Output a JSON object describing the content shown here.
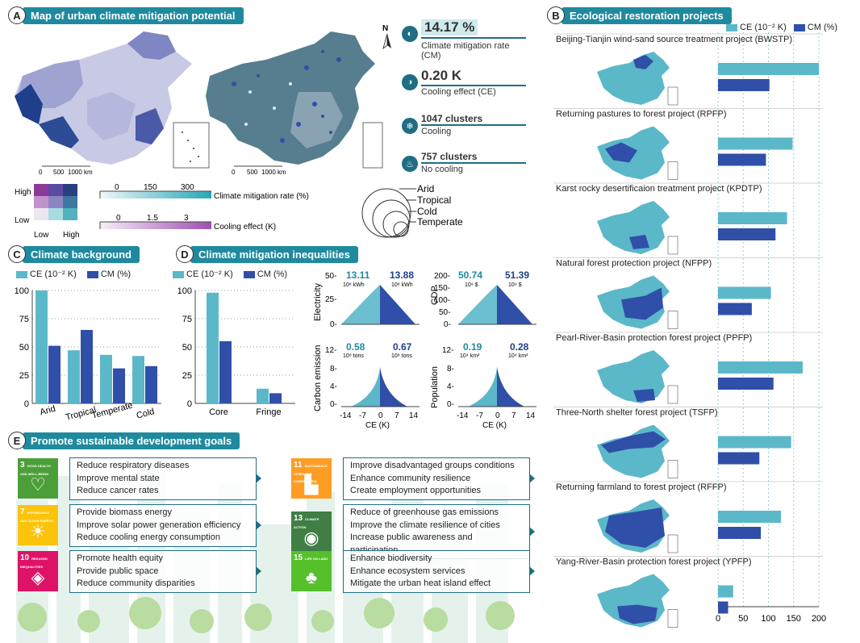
{
  "colors": {
    "ce": "#5bb8c9",
    "cm": "#2f4fa8",
    "accent": "#1f8a9e",
    "dark": "#1f6e83"
  },
  "panelA": {
    "letter": "A",
    "title": "Map of urban climate mitigation potential",
    "scale1": {
      "zero": "0",
      "mid": "500",
      "end": "1000 km"
    },
    "scale2": {
      "zero": "0",
      "mid": "500",
      "end": "1000 km"
    },
    "north": "N",
    "bivar": {
      "high": "High",
      "low": "Low",
      "xlow": "Low",
      "xhigh": "High"
    },
    "cm_legend": {
      "t0": "0",
      "t1": "150",
      "t2": "300",
      "label": "Climate mitigation rate (%)"
    },
    "ce_legend": {
      "t0": "0",
      "t1": "1.5",
      "t2": "3",
      "label": "Cooling effect (K)"
    },
    "zones": [
      "Arid",
      "Tropical",
      "Cold",
      "Temperate"
    ],
    "stats": [
      {
        "icon": "map-icon",
        "value": "14.17 %",
        "label": "Climate mitigation rate (CM)"
      },
      {
        "icon": "thermometer-icon",
        "value": "0.20 K",
        "label": "Cooling effect (CE)"
      },
      {
        "icon": "snowflake-icon",
        "value": "1047 clusters",
        "label": "Cooling"
      },
      {
        "icon": "flame-icon",
        "value": "757 clusters",
        "label": "No cooling"
      }
    ]
  },
  "panelC": {
    "letter": "C",
    "title": "Climate background",
    "legend_ce": "CE (10⁻² K)",
    "legend_cm": "CM (%)"
  },
  "panelD": {
    "letter": "D",
    "title": "Climate mitigation inequalities",
    "legend_ce": "CE (10⁻² K)",
    "legend_cm": "CM (%)",
    "scatter": [
      {
        "ylabel": "Electricity",
        "yticks": [
          "50-",
          "25-",
          "0-"
        ],
        "left": "13.11",
        "left_unit": "10⁸ kWh",
        "right": "13.88",
        "right_unit": "10⁸ kWh"
      },
      {
        "ylabel": "GDP",
        "yticks": [
          "200-",
          "150-",
          "100-",
          "50-",
          "0-"
        ],
        "left": "50.74",
        "left_unit": "10⁹ $",
        "right": "51.39",
        "right_unit": "10⁹ $"
      },
      {
        "ylabel": "Carbon emission",
        "yticks": [
          "12-",
          "8-",
          "4-",
          "0-"
        ],
        "left": "0.58",
        "left_unit": "10⁸ tons",
        "right": "0.67",
        "right_unit": "10⁸ tons"
      },
      {
        "ylabel": "Population",
        "yticks": [
          "12-",
          "8-",
          "4-",
          "0-"
        ],
        "left": "0.19",
        "left_unit": "10⁴ km²",
        "right": "0.28",
        "right_unit": "10⁴ km²"
      }
    ],
    "xticks": [
      "-14",
      "-7",
      "0",
      "7",
      "14"
    ],
    "xlabel": "CE (K)"
  },
  "panelB": {
    "letter": "B",
    "title": "Ecological restoration projects",
    "legend_ce": "CE (10⁻² K)",
    "legend_cm": "CM (%)",
    "projects": [
      "Beijing-Tianjin wind-sand source treatment project (BWSTP)",
      "Returning pastures to forest project (RPFP)",
      "Karst rocky desertificaion treatment project (KPDTP)",
      "Natural forest protection project (NFPP)",
      "Pearl-River-Basin protection forest project (PPFP)",
      "Three-North shelter forest project (TSFP)",
      "Returning farmland to forest project (RFFP)",
      "Yang-River-Basin protection forest project (YPFP)"
    ]
  },
  "panelE": {
    "letter": "E",
    "title": "Promote sustainable development goals",
    "goals": [
      {
        "num": "3",
        "name": "GOOD HEALTH AND WELL-BEING",
        "glyph": "♡",
        "color": "#4c9f38",
        "items": [
          "Reduce respiratory diseases",
          "Improve mental state",
          "Reduce cancer rates"
        ]
      },
      {
        "num": "7",
        "name": "AFFORDABLE AND CLEAN ENERGY",
        "glyph": "☀",
        "color": "#fcc30b",
        "items": [
          "Provide biomass energy",
          "Improve solar power generation efficiency",
          "Reduce cooling energy consumption"
        ]
      },
      {
        "num": "10",
        "name": "REDUCED INEQUALITIES",
        "glyph": "◈",
        "color": "#dd1367",
        "items": [
          "Promote health equity",
          "Provide public space",
          "Reduce community disparities"
        ]
      },
      {
        "num": "11",
        "name": "SUSTAINABLE CITIES AND COMMUNITIES",
        "glyph": "▙",
        "color": "#fd9d24",
        "items": [
          "Improve disadvantaged groups conditions",
          "Enhance community resilience",
          "Create employment opportunities"
        ]
      },
      {
        "num": "13",
        "name": "CLIMATE ACTION",
        "glyph": "◉",
        "color": "#3f7e44",
        "items": [
          "Reduce of greenhouse gas emissions",
          "Improve the climate resilience of cities",
          "Increase public awareness and participation"
        ]
      },
      {
        "num": "15",
        "name": "LIFE ON LAND",
        "glyph": "♣",
        "color": "#56c02b",
        "items": [
          "Enhance biodiversity",
          "Enhance ecosystem services",
          "Mitigate the urban heat island effect"
        ]
      }
    ]
  },
  "chart_data": [
    {
      "type": "bar",
      "title": "Climate background",
      "categories": [
        "Arid",
        "Tropical",
        "Temperate",
        "Cold"
      ],
      "series": [
        {
          "name": "CE (10⁻² K)",
          "values": [
            100,
            47,
            43,
            42
          ]
        },
        {
          "name": "CM (%)",
          "values": [
            51,
            65,
            31,
            33
          ]
        }
      ],
      "ylim": [
        0,
        100
      ],
      "yticks": [
        0,
        25,
        50,
        75,
        100
      ]
    },
    {
      "type": "bar",
      "title": "Climate mitigation inequalities",
      "categories": [
        "Core",
        "Fringe"
      ],
      "series": [
        {
          "name": "CE (10⁻² K)",
          "values": [
            98,
            13
          ]
        },
        {
          "name": "CM (%)",
          "values": [
            55,
            9
          ]
        }
      ],
      "ylim": [
        0,
        100
      ],
      "yticks": [
        0,
        25,
        50,
        75,
        100
      ]
    },
    {
      "type": "bar",
      "orientation": "horizontal",
      "title": "Ecological restoration projects",
      "categories": [
        "BWSTP",
        "RPFP",
        "KPDTP",
        "NFPP",
        "PPFP",
        "TSFP",
        "RFFP",
        "YPFP"
      ],
      "series": [
        {
          "name": "CE (10⁻² K)",
          "values": [
            200,
            148,
            137,
            105,
            168,
            145,
            125,
            30
          ]
        },
        {
          "name": "CM (%)",
          "values": [
            102,
            95,
            114,
            67,
            110,
            82,
            85,
            20
          ]
        }
      ],
      "xlim": [
        0,
        200
      ],
      "xticks": [
        0,
        50,
        100,
        150,
        200
      ]
    }
  ]
}
